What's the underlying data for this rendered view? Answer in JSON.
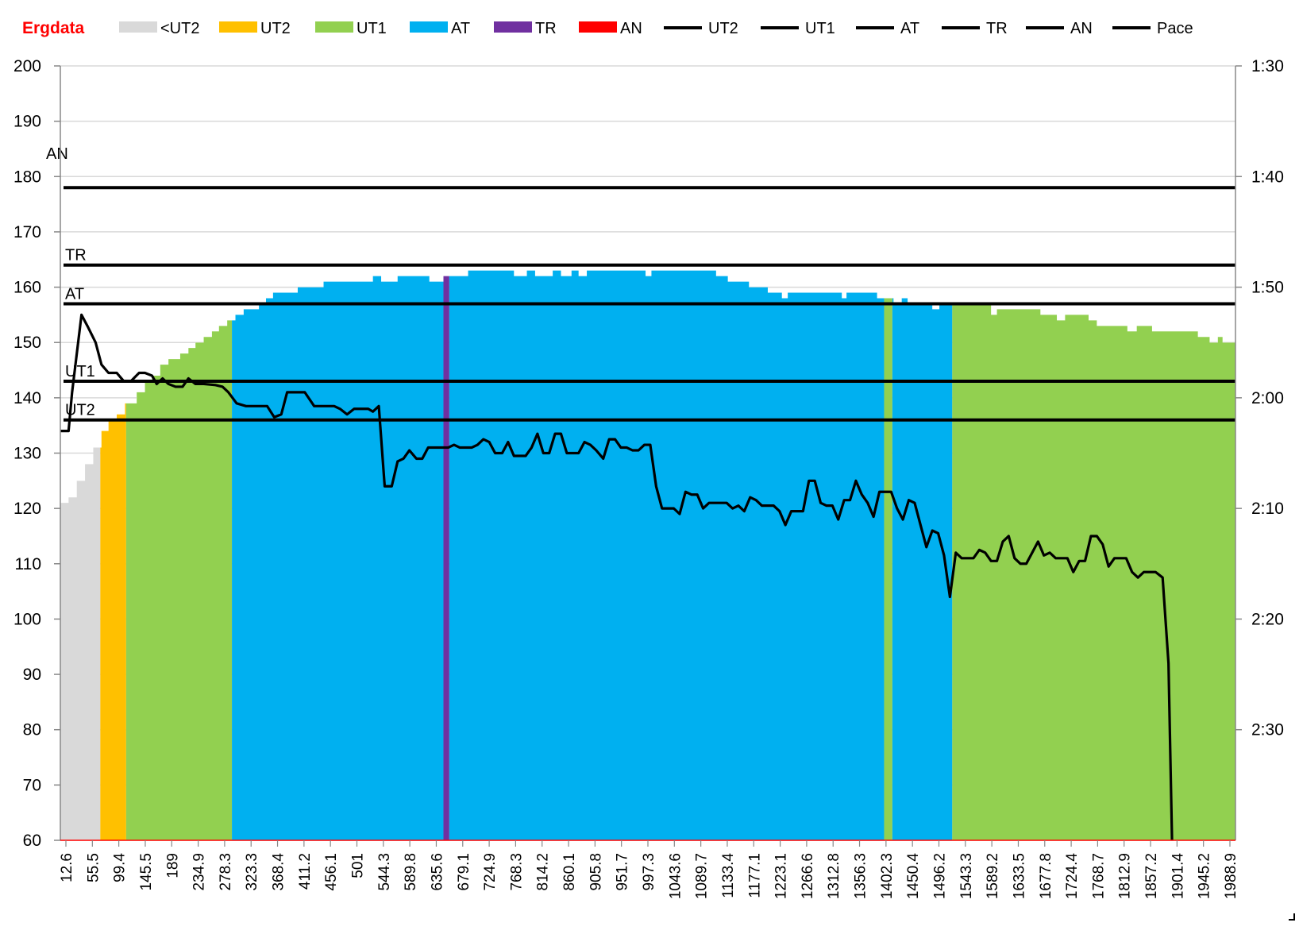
{
  "chart_data": {
    "type": "area",
    "title": "Ergdata",
    "colors": {
      "title": "#ff0000",
      "lt_ut2": "#d9d9d9",
      "ut2": "#ffc000",
      "ut1": "#92d050",
      "at": "#00b0f0",
      "tr": "#7030a0",
      "an": "#ff0000",
      "line": "#000000",
      "grid": "#d9d9d9"
    },
    "legend": [
      {
        "key": "lt_ut2",
        "label": "<UT2",
        "kind": "box"
      },
      {
        "key": "ut2",
        "label": "UT2",
        "kind": "box"
      },
      {
        "key": "ut1",
        "label": "UT1",
        "kind": "box"
      },
      {
        "key": "at",
        "label": "AT",
        "kind": "box"
      },
      {
        "key": "tr",
        "label": "TR",
        "kind": "box"
      },
      {
        "key": "an",
        "label": "AN",
        "kind": "box"
      },
      {
        "key": "line",
        "label": "UT2",
        "kind": "line"
      },
      {
        "key": "line",
        "label": "UT1",
        "kind": "line"
      },
      {
        "key": "line",
        "label": "AT",
        "kind": "line"
      },
      {
        "key": "line",
        "label": "TR",
        "kind": "line"
      },
      {
        "key": "line",
        "label": "AN",
        "kind": "line"
      },
      {
        "key": "line",
        "label": "Pace",
        "kind": "line"
      }
    ],
    "y_left": {
      "min": 60,
      "max": 200,
      "ticks": [
        60,
        70,
        80,
        90,
        100,
        110,
        120,
        130,
        140,
        150,
        160,
        170,
        180,
        190,
        200
      ]
    },
    "y_right": {
      "ticks": [
        "1:30",
        "1:40",
        "1:50",
        "2:00",
        "2:10",
        "2:20",
        "2:30"
      ],
      "ticks_at_left_value": [
        200,
        180,
        160,
        140,
        120,
        100,
        80
      ]
    },
    "x_tick_labels": [
      "12.6",
      "55.5",
      "99.4",
      "145.5",
      "189",
      "234.9",
      "278.3",
      "323.3",
      "368.4",
      "411.2",
      "456.1",
      "501",
      "544.3",
      "589.8",
      "635.6",
      "679.1",
      "724.9",
      "768.3",
      "814.2",
      "860.1",
      "905.8",
      "951.7",
      "997.3",
      "1043.6",
      "1089.7",
      "1133.4",
      "1177.1",
      "1223.1",
      "1266.6",
      "1312.8",
      "1356.3",
      "1402.3",
      "1450.4",
      "1496.2",
      "1543.3",
      "1589.2",
      "1633.5",
      "1677.8",
      "1724.4",
      "1768.7",
      "1812.9",
      "1857.2",
      "1901.4",
      "1945.2",
      "1988.9"
    ],
    "thresholds": [
      {
        "name": "AN",
        "value": 178
      },
      {
        "name": "TR",
        "value": 164
      },
      {
        "name": "AT",
        "value": 157
      },
      {
        "name": "UT1",
        "value": 143
      },
      {
        "name": "UT2",
        "value": 136
      }
    ],
    "heart_rate_steps": [
      [
        0,
        121
      ],
      [
        0.7,
        122
      ],
      [
        1.4,
        125
      ],
      [
        2.1,
        128
      ],
      [
        2.8,
        131
      ],
      [
        3.5,
        134
      ],
      [
        4.1,
        136
      ],
      [
        4.8,
        137
      ],
      [
        5.5,
        139
      ],
      [
        6.5,
        141
      ],
      [
        7.2,
        143
      ],
      [
        7.8,
        144
      ],
      [
        8.5,
        146
      ],
      [
        9.2,
        147
      ],
      [
        10.2,
        148
      ],
      [
        10.9,
        149
      ],
      [
        11.5,
        150
      ],
      [
        12.2,
        151
      ],
      [
        12.9,
        152
      ],
      [
        13.5,
        153
      ],
      [
        14.2,
        154
      ],
      [
        14.9,
        155
      ],
      [
        15.6,
        156
      ],
      [
        16.5,
        156
      ],
      [
        16.9,
        157
      ],
      [
        17.5,
        158
      ],
      [
        18.1,
        159
      ],
      [
        20,
        159
      ],
      [
        20.2,
        160
      ],
      [
        22.3,
        160
      ],
      [
        22.4,
        161
      ],
      [
        24.5,
        161
      ],
      [
        26,
        161
      ],
      [
        26.6,
        162
      ],
      [
        27.3,
        161
      ],
      [
        28,
        161
      ],
      [
        28.7,
        162
      ],
      [
        30.7,
        162
      ],
      [
        31.4,
        161
      ],
      [
        32.4,
        161
      ],
      [
        32.6,
        162
      ],
      [
        34.5,
        162
      ],
      [
        34.7,
        163
      ],
      [
        38.4,
        163
      ],
      [
        38.6,
        162
      ],
      [
        39.2,
        162
      ],
      [
        39.7,
        163
      ],
      [
        40.2,
        163
      ],
      [
        40.4,
        162
      ],
      [
        41.7,
        162
      ],
      [
        41.9,
        163
      ],
      [
        42.5,
        163
      ],
      [
        42.6,
        162
      ],
      [
        43.3,
        162
      ],
      [
        43.5,
        163
      ],
      [
        43.9,
        163
      ],
      [
        44.1,
        162
      ],
      [
        44.7,
        162
      ],
      [
        44.8,
        163
      ],
      [
        49.6,
        163
      ],
      [
        49.8,
        162
      ],
      [
        50.1,
        162
      ],
      [
        50.3,
        163
      ],
      [
        55.6,
        163
      ],
      [
        55.8,
        162
      ],
      [
        56.7,
        162
      ],
      [
        56.8,
        161
      ],
      [
        57.8,
        161
      ],
      [
        58.6,
        160
      ],
      [
        59.6,
        160
      ],
      [
        60.2,
        159
      ],
      [
        61.3,
        159
      ],
      [
        61.4,
        158
      ],
      [
        61.7,
        158
      ],
      [
        61.9,
        159
      ],
      [
        66.3,
        159
      ],
      [
        66.5,
        158
      ],
      [
        66.7,
        158
      ],
      [
        66.9,
        159
      ],
      [
        69.3,
        159
      ],
      [
        69.5,
        158
      ],
      [
        70.8,
        158
      ],
      [
        70.9,
        157
      ],
      [
        71.4,
        157
      ],
      [
        71.6,
        158
      ],
      [
        71.8,
        158
      ],
      [
        72.1,
        157
      ],
      [
        74.1,
        157
      ],
      [
        74.2,
        156
      ],
      [
        74.7,
        156
      ],
      [
        74.8,
        157
      ],
      [
        79,
        157
      ],
      [
        79.2,
        155
      ],
      [
        79.5,
        155
      ],
      [
        79.7,
        156
      ],
      [
        83.2,
        156
      ],
      [
        83.4,
        155
      ],
      [
        84.6,
        155
      ],
      [
        84.8,
        154
      ],
      [
        85.3,
        154
      ],
      [
        85.5,
        155
      ],
      [
        87.3,
        155
      ],
      [
        87.5,
        154
      ],
      [
        88,
        154
      ],
      [
        88.2,
        153
      ],
      [
        90.6,
        153
      ],
      [
        90.8,
        152
      ],
      [
        91.4,
        152
      ],
      [
        91.6,
        153
      ],
      [
        92.8,
        153
      ],
      [
        92.9,
        152
      ],
      [
        96.6,
        152
      ],
      [
        96.8,
        151
      ],
      [
        97.6,
        151
      ],
      [
        97.8,
        150
      ],
      [
        98.3,
        150
      ],
      [
        98.5,
        151
      ],
      [
        98.7,
        151
      ],
      [
        98.9,
        150
      ],
      [
        100,
        150
      ]
    ],
    "zones": [
      {
        "key": "lt_ut2",
        "from": 0,
        "to": 3.4
      },
      {
        "key": "ut2",
        "from": 3.4,
        "to": 5.6
      },
      {
        "key": "ut1",
        "from": 5.6,
        "to": 14.6
      },
      {
        "key": "at",
        "from": 14.6,
        "to": 32.6
      },
      {
        "key": "tr",
        "from": 32.6,
        "to": 33.1
      },
      {
        "key": "at",
        "from": 33.1,
        "to": 70.1
      },
      {
        "key": "ut1",
        "from": 70.1,
        "to": 70.8
      },
      {
        "key": "at",
        "from": 70.8,
        "to": 75.9
      },
      {
        "key": "ut1",
        "from": 75.9,
        "to": 100
      }
    ],
    "pace_line": [
      [
        0,
        134
      ],
      [
        0.7,
        134
      ],
      [
        1,
        141
      ],
      [
        1.4,
        148
      ],
      [
        1.8,
        155
      ],
      [
        2.3,
        153
      ],
      [
        3,
        150
      ],
      [
        3.5,
        146
      ],
      [
        4.1,
        144.5
      ],
      [
        4.8,
        144.5
      ],
      [
        5.4,
        143
      ],
      [
        6,
        143
      ],
      [
        6.7,
        144.5
      ],
      [
        7.2,
        144.5
      ],
      [
        7.8,
        144
      ],
      [
        8.2,
        142.5
      ],
      [
        8.7,
        143.5
      ],
      [
        9.2,
        142.5
      ],
      [
        9.8,
        142
      ],
      [
        10.4,
        142
      ],
      [
        10.9,
        143.5
      ],
      [
        11.5,
        142.5
      ],
      [
        12.2,
        142.5
      ],
      [
        13.2,
        142.3
      ],
      [
        13.8,
        142
      ],
      [
        14.3,
        141
      ],
      [
        15,
        139
      ],
      [
        15.8,
        138.5
      ],
      [
        16.5,
        138.5
      ],
      [
        17.6,
        138.5
      ],
      [
        18.2,
        136.5
      ],
      [
        18.8,
        137
      ],
      [
        19.3,
        141
      ],
      [
        20.3,
        141
      ],
      [
        20.8,
        141
      ],
      [
        21.6,
        138.5
      ],
      [
        22.6,
        138.5
      ],
      [
        23.3,
        138.5
      ],
      [
        23.8,
        138
      ],
      [
        24.4,
        137
      ],
      [
        25,
        138
      ],
      [
        26.2,
        138
      ],
      [
        26.6,
        137.5
      ],
      [
        27.1,
        138.5
      ],
      [
        27.6,
        124
      ],
      [
        28.2,
        124
      ],
      [
        28.7,
        128.5
      ],
      [
        29.2,
        129
      ],
      [
        29.7,
        130.5
      ],
      [
        30.3,
        129
      ],
      [
        30.8,
        129
      ],
      [
        31.3,
        131
      ],
      [
        32.5,
        131
      ],
      [
        33,
        131
      ],
      [
        33.5,
        131.5
      ],
      [
        34,
        131
      ],
      [
        35,
        131
      ],
      [
        35.5,
        131.5
      ],
      [
        36,
        132.5
      ],
      [
        36.5,
        132
      ],
      [
        37,
        130
      ],
      [
        37.6,
        130
      ],
      [
        38.1,
        132
      ],
      [
        38.6,
        129.5
      ],
      [
        39.6,
        129.5
      ],
      [
        40.1,
        131
      ],
      [
        40.6,
        133.5
      ],
      [
        41.1,
        130
      ],
      [
        41.6,
        130
      ],
      [
        42.1,
        133.5
      ],
      [
        42.6,
        133.5
      ],
      [
        43.1,
        130
      ],
      [
        44.1,
        130
      ],
      [
        44.6,
        132
      ],
      [
        45.1,
        131.5
      ],
      [
        45.6,
        130.5
      ],
      [
        46.2,
        129
      ],
      [
        46.7,
        132.5
      ],
      [
        47.2,
        132.5
      ],
      [
        47.7,
        131
      ],
      [
        48.2,
        131
      ],
      [
        48.7,
        130.5
      ],
      [
        49.2,
        130.5
      ],
      [
        49.7,
        131.5
      ],
      [
        50.2,
        131.5
      ],
      [
        50.7,
        124
      ],
      [
        51.2,
        120
      ],
      [
        51.7,
        120
      ],
      [
        52.2,
        120
      ],
      [
        52.7,
        119
      ],
      [
        53.2,
        123
      ],
      [
        53.7,
        122.5
      ],
      [
        54.2,
        122.5
      ],
      [
        54.7,
        120
      ],
      [
        55.2,
        121
      ],
      [
        56.2,
        121
      ],
      [
        56.7,
        121
      ],
      [
        57.2,
        120
      ],
      [
        57.7,
        120.5
      ],
      [
        58.2,
        119.5
      ],
      [
        58.7,
        122
      ],
      [
        59.2,
        121.5
      ],
      [
        59.7,
        120.5
      ],
      [
        60.7,
        120.5
      ],
      [
        61.2,
        119.5
      ],
      [
        61.7,
        117
      ],
      [
        62.2,
        119.5
      ],
      [
        63.2,
        119.5
      ],
      [
        63.7,
        125
      ],
      [
        64.2,
        125
      ],
      [
        64.7,
        121
      ],
      [
        65.2,
        120.5
      ],
      [
        65.7,
        120.5
      ],
      [
        66.2,
        118
      ],
      [
        66.7,
        121.5
      ],
      [
        67.2,
        121.5
      ],
      [
        67.7,
        125
      ],
      [
        68.2,
        122.5
      ],
      [
        68.7,
        121
      ],
      [
        69.2,
        118.5
      ],
      [
        69.7,
        123
      ],
      [
        70.2,
        123
      ],
      [
        70.7,
        123
      ],
      [
        71.2,
        120
      ],
      [
        71.7,
        118
      ],
      [
        72.2,
        121.5
      ],
      [
        72.7,
        121
      ],
      [
        73.2,
        117
      ],
      [
        73.7,
        113
      ],
      [
        74.2,
        116
      ],
      [
        74.7,
        115.5
      ],
      [
        75.2,
        111.5
      ],
      [
        75.7,
        104
      ],
      [
        76.2,
        112
      ],
      [
        76.7,
        111
      ],
      [
        77.2,
        111
      ],
      [
        77.7,
        111
      ],
      [
        78.2,
        112.5
      ],
      [
        78.7,
        112
      ],
      [
        79.2,
        110.5
      ],
      [
        79.7,
        110.5
      ],
      [
        80.2,
        114
      ],
      [
        80.7,
        115
      ],
      [
        81.2,
        111
      ],
      [
        81.7,
        110
      ],
      [
        82.2,
        110
      ],
      [
        82.7,
        112
      ],
      [
        83.2,
        114
      ],
      [
        83.7,
        111.5
      ],
      [
        84.2,
        112
      ],
      [
        84.7,
        111
      ],
      [
        85.2,
        111
      ],
      [
        85.7,
        111
      ],
      [
        86.2,
        108.5
      ],
      [
        86.7,
        110.5
      ],
      [
        87.2,
        110.5
      ],
      [
        87.7,
        115
      ],
      [
        88.2,
        115
      ],
      [
        88.7,
        113.5
      ],
      [
        89.2,
        109.5
      ],
      [
        89.7,
        111
      ],
      [
        90.7,
        111
      ],
      [
        91.2,
        108.5
      ],
      [
        91.7,
        107.5
      ],
      [
        92.2,
        108.5
      ],
      [
        93.2,
        108.5
      ],
      [
        93.8,
        107.5
      ],
      [
        94.3,
        92
      ],
      [
        94.6,
        60
      ]
    ]
  }
}
